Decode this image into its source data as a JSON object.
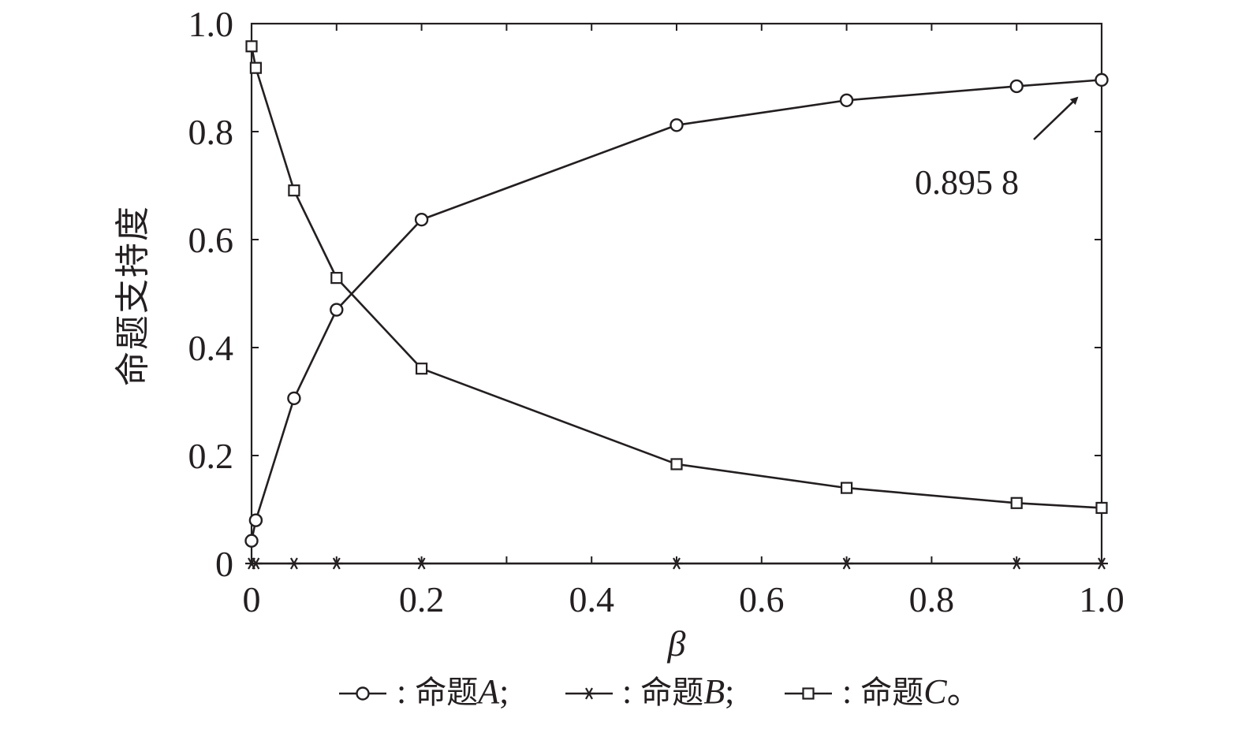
{
  "chart_data": {
    "type": "line",
    "title": "",
    "xlabel": "β",
    "ylabel": "命题支持度",
    "xlim": [
      0,
      1.0
    ],
    "ylim": [
      0,
      1.0
    ],
    "x_ticks": [
      "0",
      "0.2",
      "0.4",
      "0.6",
      "0.8",
      "1.0"
    ],
    "y_ticks": [
      "0",
      "0.2",
      "0.4",
      "0.6",
      "0.8",
      "1.0"
    ],
    "grid": false,
    "legend_position": "bottom",
    "x": [
      0,
      0.005,
      0.05,
      0.1,
      0.2,
      0.5,
      0.7,
      0.9,
      1.0
    ],
    "series": [
      {
        "name": "命题A",
        "marker": "circle",
        "values": [
          0.042,
          0.08,
          0.306,
          0.47,
          0.637,
          0.812,
          0.858,
          0.884,
          0.8958
        ]
      },
      {
        "name": "命题B",
        "marker": "asterisk",
        "values": [
          0,
          0,
          0,
          0,
          0,
          0,
          0,
          0,
          0
        ]
      },
      {
        "name": "命题C",
        "marker": "square",
        "values": [
          0.958,
          0.918,
          0.691,
          0.529,
          0.361,
          0.184,
          0.14,
          0.112,
          0.103
        ]
      }
    ],
    "annotation": {
      "text": "0.895 8",
      "x": 1.0,
      "y": 0.8958
    },
    "legend": {
      "separator": ":",
      "entries": [
        {
          "prefix": "命题",
          "letter": "A",
          "suffix": ";"
        },
        {
          "prefix": "命题",
          "letter": "B",
          "suffix": ";"
        },
        {
          "prefix": "命题",
          "letter": "C",
          "suffix": "。"
        }
      ]
    },
    "colors": {
      "ink": "#231f20",
      "background": "#ffffff"
    }
  }
}
